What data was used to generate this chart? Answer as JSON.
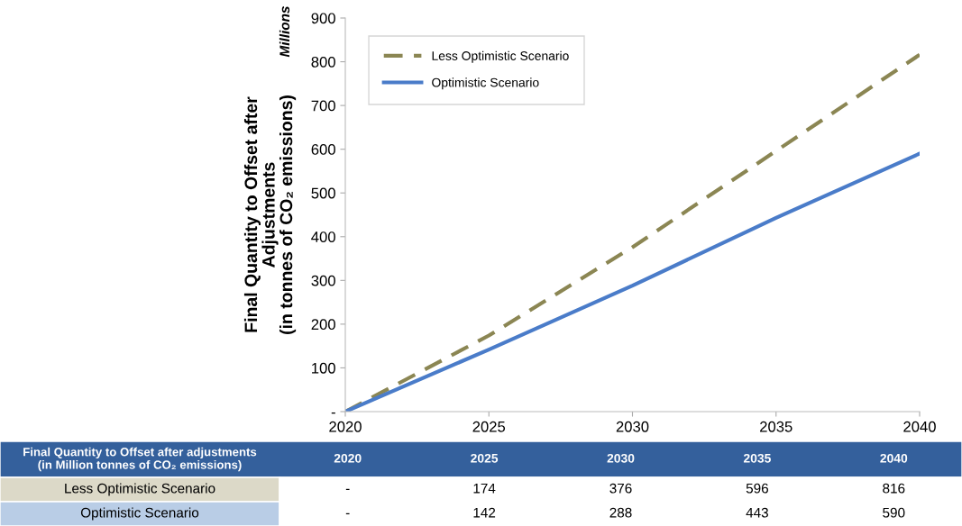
{
  "chart_data": {
    "type": "line",
    "ylabel": "Final Quantity to Offset after\nAdjustments\n(in tonnes of CO₂ emissions)",
    "annotations": [
      "Millions",
      "Final Quantity to Offset after adjustments\n(in Million tonnes of CO₂ emissions)",
      "2020",
      "2025",
      "2030",
      "2035",
      "2040",
      "-",
      "174",
      "376",
      "596",
      "816",
      "-",
      "142",
      "288",
      "443",
      "590"
    ],
    "x": [
      2020,
      2025,
      2030,
      2035,
      2040
    ],
    "series": [
      {
        "name": "Less Optimistic Scenario",
        "color": "#8b8653",
        "line_style": "dashed",
        "values": [
          0,
          174,
          376,
          596,
          816
        ]
      },
      {
        "name": "Optimistic Scenario",
        "color": "#4a7cc9",
        "line_style": "solid",
        "values": [
          0,
          142,
          288,
          443,
          590
        ]
      }
    ],
    "xlim": [
      2020,
      2040
    ],
    "xticks": [
      2020,
      2025,
      2030,
      2035,
      2040
    ],
    "ylim": [
      0,
      900
    ],
    "yticks": [
      {
        "value": 0,
        "label": "-"
      },
      100,
      200,
      300,
      400,
      500,
      600,
      700,
      800,
      900
    ],
    "grid": false,
    "legend": "top left",
    "marker": "none"
  }
}
